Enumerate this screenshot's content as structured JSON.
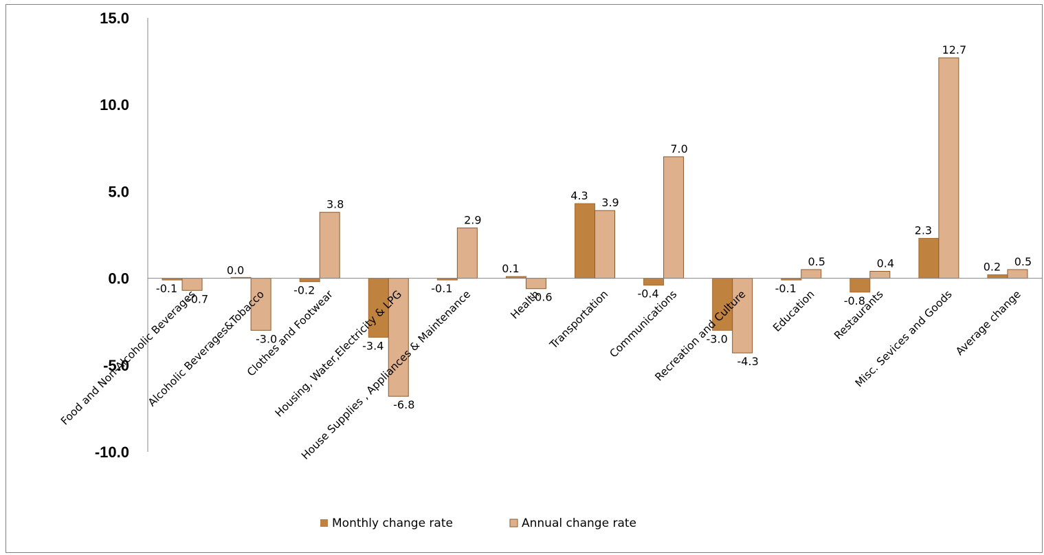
{
  "chart_data": {
    "type": "bar",
    "title": "",
    "xlabel": "",
    "ylabel": "",
    "ylim": [
      -10,
      15
    ],
    "yticks": [
      "15.0",
      "10.0",
      "5.0",
      "0.0",
      "-5.0",
      "-10.0"
    ],
    "grid": false,
    "legend_position": "bottom",
    "categories": [
      "Food and Non-Alcoholic Beverages",
      "Alcoholic Beverages&Tobacco",
      "Clothes and Footwear",
      "Housing, Water,Electricity & LPG",
      "House Supplies , Appliances & Maintenance",
      "Health",
      "Transportation",
      "Communications",
      "Recreation and Culture",
      "Education",
      "Restaurants",
      "Misc. Sevices and Goods",
      "Average change"
    ],
    "series": [
      {
        "name": "Monthly change rate",
        "color": "#c0823f",
        "values": [
          -0.1,
          0.0,
          -0.2,
          -3.4,
          -0.1,
          0.1,
          4.3,
          -0.4,
          -3.0,
          -0.1,
          -0.8,
          2.3,
          0.2
        ],
        "labels": [
          "-0.1",
          "0.0",
          "-0.2",
          "-3.4",
          "-0.1",
          "0.1",
          "4.3",
          "-0.4",
          "-3.0",
          "-0.1",
          "-0.8",
          "2.3",
          "0.2"
        ]
      },
      {
        "name": "Annual change rate",
        "color": "#deb18c",
        "values": [
          -0.7,
          -3.0,
          3.8,
          -6.8,
          2.9,
          -0.6,
          3.9,
          7.0,
          -4.3,
          0.5,
          0.4,
          12.7,
          0.5
        ],
        "labels": [
          "-0.7",
          "-3.0",
          "3.8",
          "-6.8",
          "2.9",
          "-0.6",
          "3.9",
          "7.0",
          "-4.3",
          "0.5",
          "0.4",
          "12.7",
          "0.5"
        ]
      }
    ]
  }
}
